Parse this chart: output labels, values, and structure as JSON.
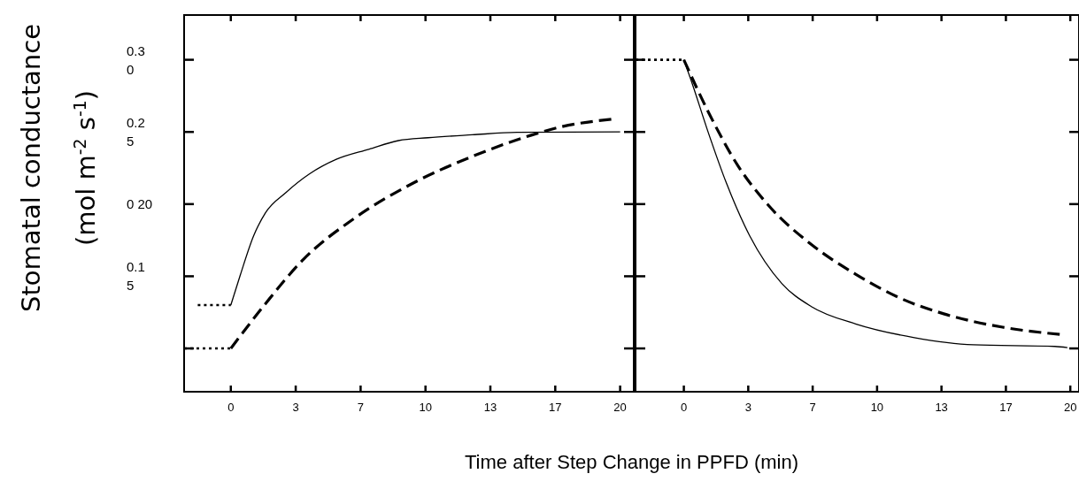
{
  "chart_data": [
    {
      "type": "line",
      "ylabel": "Stomatal conductance\n(mol m$^{-2}$ s$^{-1}$)",
      "xlabel": "Time after Step Change in PPFD (min)",
      "xlim": [
        -2.4,
        20.7
      ],
      "ylim": [
        0.07,
        0.331
      ],
      "xticks": [
        0,
        {
          "value": 3.333,
          "label": "3"
        },
        {
          "value": 6.667,
          "label": "7"
        },
        10,
        {
          "value": 13.333,
          "label": "13"
        },
        {
          "value": 16.667,
          "label": "17"
        },
        20
      ],
      "yticks": [
        {
          "value": 0.3,
          "label": "0.30"
        },
        {
          "value": 0.25,
          "label": "0.25"
        },
        {
          "value": 0.2,
          "label": "0 20"
        },
        {
          "value": 0.15,
          "label": "0.15"
        },
        {
          "value": 0.1,
          "label": null
        }
      ],
      "series": [
        {
          "color": "#000000",
          "line_style": "dotted",
          "x": [
            -1.7,
            0
          ],
          "values": [
            0.13,
            0.13
          ]
        },
        {
          "color": "#000000",
          "line_style": "solid",
          "x": [
            0,
            0.49,
            1.17,
            1.78,
            2.83,
            4.05,
            5.42,
            7.09,
            8.61,
            10.13,
            12.4,
            14.7,
            20
          ],
          "values": [
            0.13,
            0.151,
            0.178,
            0.194,
            0.208,
            0.221,
            0.231,
            0.238,
            0.244,
            0.246,
            0.248,
            0.2497,
            0.25
          ]
        },
        {
          "color": "#000000",
          "line_style": "dotted",
          "x": [
            -2.4,
            0
          ],
          "values": [
            0.1,
            0.1
          ]
        },
        {
          "color": "#000000",
          "line_style": "dashed",
          "x": [
            0,
            1.78,
            3.75,
            6.33,
            9.37,
            12.4,
            15.4,
            16.9,
            19.7
          ],
          "values": [
            0.1,
            0.131,
            0.162,
            0.19,
            0.2146,
            0.233,
            0.2476,
            0.2533,
            0.259
          ]
        }
      ]
    },
    {
      "type": "line",
      "tick_labels": "x",
      "xlim": [
        -2.5,
        20.45
      ],
      "ylim": [
        0.07,
        0.331
      ],
      "xticks": [
        0,
        {
          "value": 3.333,
          "label": "3"
        },
        {
          "value": 6.667,
          "label": "7"
        },
        10,
        {
          "value": 13.333,
          "label": "13"
        },
        {
          "value": 16.667,
          "label": "17"
        },
        20
      ],
      "yticks": [
        0.3,
        0.25,
        0.2,
        0.15,
        0.1
      ],
      "series": [
        {
          "color": "#000000",
          "line_style": "dotted",
          "x": [
            -2.5,
            0
          ],
          "values": [
            0.3,
            0.3
          ]
        },
        {
          "color": "#000000",
          "line_style": "solid",
          "x": [
            0,
            0.37,
            1.28,
            2.19,
            3.41,
            5.07,
            6.6,
            8.89,
            11.93,
            14.98,
            19.2,
            19.85
          ],
          "values": [
            0.3,
            0.286,
            0.249,
            0.215,
            0.178,
            0.145,
            0.129,
            0.117,
            0.1075,
            0.1025,
            0.1014,
            0.1006
          ]
        },
        {
          "color": "#000000",
          "line_style": "dashed",
          "x": [
            0,
            1.28,
            2.79,
            4.32,
            6.6,
            8.89,
            11.17,
            13.45,
            16.5,
            19.54
          ],
          "values": [
            0.3,
            0.2635,
            0.2268,
            0.2,
            0.172,
            0.1514,
            0.135,
            0.124,
            0.1147,
            0.1096
          ]
        }
      ]
    }
  ]
}
